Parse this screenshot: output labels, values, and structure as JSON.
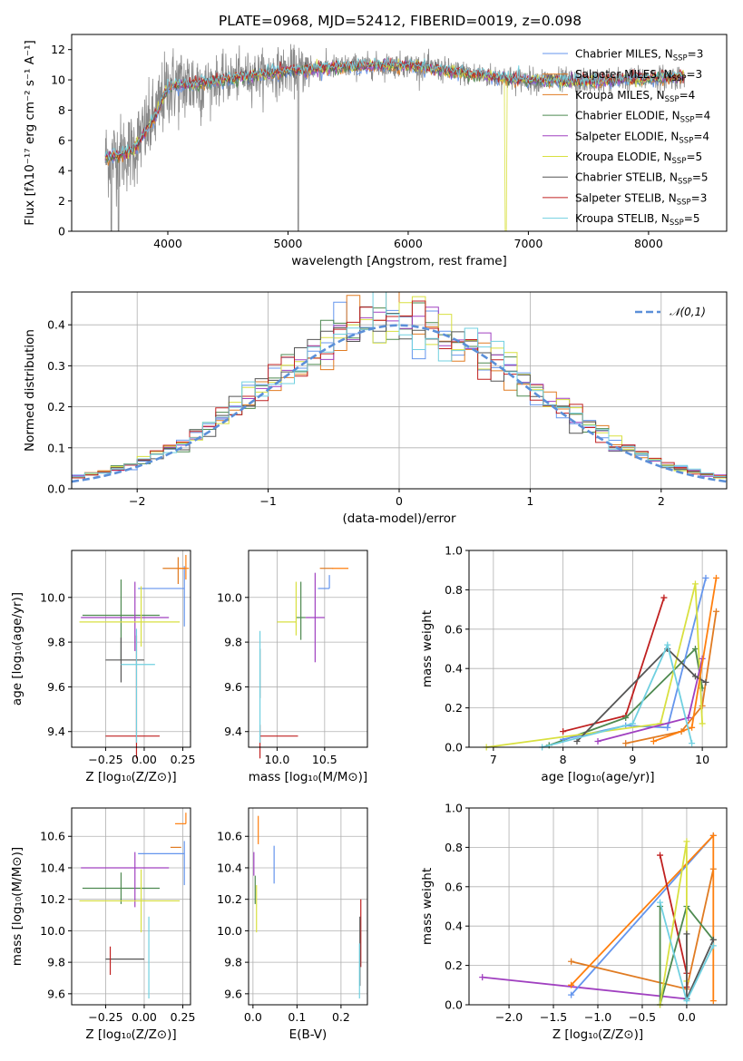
{
  "colors": {
    "series": [
      "#6495ed",
      "#ff7f0e",
      "#e07b22",
      "#4e8a50",
      "#a040c0",
      "#d8e040",
      "#555555",
      "#c02020",
      "#70d0e0"
    ],
    "top_colors": [
      "#6495ed",
      "#e07b22",
      "#4e8a50",
      "#a040c0",
      "#d8e040",
      "#555555",
      "#c02020",
      "#70d0e0"
    ],
    "spectrum": "#888888",
    "normal_curve": "#5b8fd8",
    "grid": "#b0b0b0"
  },
  "chart_data": [
    {
      "id": "spectrum",
      "type": "line",
      "title": "PLATE=0968, MJD=52412, FIBERID=0019, z=0.098",
      "xlabel": "wavelength [Angstrom, rest frame]",
      "ylabel": "Flux [fλ10⁻¹⁷ erg cm⁻² s⁻¹ A⁻¹]",
      "xlim": [
        3200,
        8650
      ],
      "ylim": [
        0,
        13
      ],
      "xticks": [
        "4000",
        "5000",
        "6000",
        "7000",
        "8000"
      ],
      "yticks": [
        "0",
        "2",
        "4",
        "6",
        "8",
        "10",
        "12"
      ],
      "grid": false,
      "legend_position": "right",
      "legend": [
        {
          "text": "Chabrier MILES, N",
          "sub": "SSP",
          "tail": "=3"
        },
        {
          "text": "Salpeter MILES, N",
          "sub": "SSP",
          "tail": "=3"
        },
        {
          "text": "Kroupa MILES, N",
          "sub": "SSP",
          "tail": "=4"
        },
        {
          "text": "Chabrier ELODIE, N",
          "sub": "SSP",
          "tail": "=4"
        },
        {
          "text": "Salpeter ELODIE, N",
          "sub": "SSP",
          "tail": "=4"
        },
        {
          "text": "Kroupa ELODIE, N",
          "sub": "SSP",
          "tail": "=5"
        },
        {
          "text": "Chabrier STELIB, N",
          "sub": "SSP",
          "tail": "=5"
        },
        {
          "text": "Salpeter STELIB, N",
          "sub": "SSP",
          "tail": "=3"
        },
        {
          "text": "Kroupa STELIB, N",
          "sub": "SSP",
          "tail": "=5"
        }
      ],
      "continuum": {
        "x": [
          3500,
          3700,
          3900,
          4000,
          4300,
          4600,
          5000,
          5500,
          6000,
          6500,
          7000,
          7500,
          8000,
          8300
        ],
        "y": [
          4.9,
          5.3,
          7.6,
          9.6,
          9.8,
          10.2,
          10.6,
          10.9,
          11.0,
          10.4,
          10.0,
          9.9,
          10.1,
          10.2
        ]
      }
    },
    {
      "id": "residuals",
      "type": "histogram",
      "xlabel": "(data-model)/error",
      "ylabel": "Normed distribution",
      "xlim": [
        -2.5,
        2.5
      ],
      "ylim": [
        0,
        0.48
      ],
      "xticks": [
        "−2",
        "−1",
        "0",
        "1",
        "2"
      ],
      "xtick_values": [
        -2,
        -1,
        0,
        1,
        2
      ],
      "yticks": [
        "0.0",
        "0.1",
        "0.2",
        "0.3",
        "0.4"
      ],
      "ytick_values": [
        0,
        0.1,
        0.2,
        0.3,
        0.4
      ],
      "grid": true,
      "legend_position": "upper right",
      "legend": "𝒩(0,1)",
      "bin_width": 0.1
    },
    {
      "id": "age-vs-Z",
      "type": "errorbar",
      "xlabel": "Z [log₁₀(Z/Z⊙)]",
      "ylabel": "age  [log₁₀(age/yr)]",
      "xlim": [
        -0.47,
        0.3
      ],
      "ylim": [
        9.33,
        10.21
      ],
      "xticks": [
        "−0.25",
        "0.00",
        "0.25"
      ],
      "xtick_values": [
        -0.25,
        0,
        0.25
      ],
      "yticks": [
        "9.4",
        "9.6",
        "9.8",
        "10.0"
      ],
      "ytick_values": [
        9.4,
        9.6,
        9.8,
        10.0
      ],
      "grid": true,
      "points": [
        {
          "series": 0,
          "x": 0.26,
          "y": 10.04,
          "xerr": [
            0.3,
            0
          ],
          "yerr": [
            0.17,
            0.1
          ]
        },
        {
          "series": 2,
          "x": 0.22,
          "y": 10.13,
          "xerr": [
            0.1,
            0.05
          ],
          "yerr": [
            0.07,
            0.05
          ]
        },
        {
          "series": 3,
          "x": -0.15,
          "y": 9.92,
          "xerr": [
            0.25,
            0.25
          ],
          "yerr": [
            0.2,
            0.16
          ]
        },
        {
          "series": 4,
          "x": -0.06,
          "y": 9.91,
          "xerr": [
            0.35,
            0.22
          ],
          "yerr": [
            0.15,
            0.16
          ]
        },
        {
          "series": 5,
          "x": -0.02,
          "y": 9.89,
          "xerr": [
            0.4,
            0.25
          ],
          "yerr": [
            0.11,
            0.16
          ]
        },
        {
          "series": 6,
          "x": -0.15,
          "y": 9.72,
          "xerr": [
            0.1,
            0.15
          ],
          "yerr": [
            0.1,
            0.1
          ]
        },
        {
          "series": 7,
          "x": -0.05,
          "y": 9.38,
          "xerr": [
            0.2,
            0.15
          ],
          "yerr": [
            0.1,
            0.45
          ]
        },
        {
          "series": 8,
          "x": -0.05,
          "y": 9.7,
          "xerr": [
            0.1,
            0.12
          ],
          "yerr": [
            0.35,
            0.16
          ]
        },
        {
          "series": 1,
          "x": 0.27,
          "y": 10.13,
          "xerr": [
            0.05,
            0.02
          ],
          "yerr": [
            0.05,
            0.06
          ]
        }
      ]
    },
    {
      "id": "age-vs-mass",
      "type": "errorbar",
      "xlabel": "mass [log₁₀(M/M⊙)]",
      "ylabel": "",
      "xlim": [
        9.7,
        10.95
      ],
      "ylim": [
        9.33,
        10.21
      ],
      "xticks": [
        "10.0",
        "10.5"
      ],
      "xtick_values": [
        10.0,
        10.5
      ],
      "yticks": [
        "9.4",
        "9.6",
        "9.8",
        "10.0"
      ],
      "ytick_values": [
        9.4,
        9.6,
        9.8,
        10.0
      ],
      "grid": true,
      "points": [
        {
          "series": 0,
          "x": 10.55,
          "y": 10.04,
          "xerr": [
            0.12,
            0.0
          ],
          "yerr": [
            0.0,
            0.06
          ]
        },
        {
          "series": 2,
          "x": 10.55,
          "y": 10.13,
          "xerr": [
            0.1,
            0.04
          ],
          "yerr": [
            0.0,
            0.0
          ]
        },
        {
          "series": 3,
          "x": 10.25,
          "y": 9.91,
          "xerr": [
            0.05,
            0.05
          ],
          "yerr": [
            0.1,
            0.16
          ]
        },
        {
          "series": 4,
          "x": 10.4,
          "y": 9.91,
          "xerr": [
            0.1,
            0.1
          ],
          "yerr": [
            0.2,
            0.2
          ]
        },
        {
          "series": 5,
          "x": 10.2,
          "y": 9.89,
          "xerr": [
            0.2,
            0.0
          ],
          "yerr": [
            0.06,
            0.18
          ]
        },
        {
          "series": 6,
          "x": 9.82,
          "y": 9.72,
          "xerr": [
            0.0,
            0.0
          ],
          "yerr": [
            0.17,
            0.05
          ]
        },
        {
          "series": 7,
          "x": 9.82,
          "y": 9.38,
          "xerr": [
            0.0,
            0.4
          ],
          "yerr": [
            0.1,
            0.05
          ]
        },
        {
          "series": 8,
          "x": 9.82,
          "y": 9.7,
          "xerr": [
            0.0,
            0.0
          ],
          "yerr": [
            0.35,
            0.15
          ]
        },
        {
          "series": 1,
          "x": 10.68,
          "y": 10.13,
          "xerr": [
            0.1,
            0.07
          ],
          "yerr": [
            0.0,
            0.0
          ]
        }
      ]
    },
    {
      "id": "mass-weight-vs-age",
      "type": "line",
      "xlabel": "age  [log₁₀(age/yr)]",
      "ylabel": "mass weight",
      "xlim": [
        6.65,
        10.35
      ],
      "ylim": [
        0,
        1
      ],
      "xticks": [
        "7",
        "8",
        "9",
        "10"
      ],
      "xtick_values": [
        7,
        8,
        9,
        10
      ],
      "yticks": [
        "0.0",
        "0.2",
        "0.4",
        "0.6",
        "0.8",
        "1.0"
      ],
      "ytick_values": [
        0,
        0.2,
        0.4,
        0.6,
        0.8,
        1.0
      ],
      "grid": true
    },
    {
      "id": "mass-vs-Z",
      "type": "errorbar",
      "xlabel": "Z [log₁₀(Z/Z⊙)]",
      "ylabel": "mass [log₁₀(M/M⊙)]",
      "xlim": [
        -0.47,
        0.3
      ],
      "ylim": [
        9.53,
        10.78
      ],
      "xticks": [
        "−0.25",
        "0.00",
        "0.25"
      ],
      "xtick_values": [
        -0.25,
        0,
        0.25
      ],
      "yticks": [
        "9.6",
        "9.8",
        "10.0",
        "10.2",
        "10.4",
        "10.6"
      ],
      "ytick_values": [
        9.6,
        9.8,
        10.0,
        10.2,
        10.4,
        10.6
      ],
      "grid": true
    },
    {
      "id": "mass-vs-EBV",
      "type": "errorbar",
      "xlabel": "E(B-V)",
      "ylabel": "",
      "xlim": [
        -0.01,
        0.26
      ],
      "ylim": [
        9.53,
        10.78
      ],
      "xticks": [
        "0.0",
        "0.1",
        "0.2"
      ],
      "xtick_values": [
        0.0,
        0.1,
        0.2
      ],
      "yticks": [
        "9.6",
        "9.8",
        "10.0",
        "10.2",
        "10.4",
        "10.6"
      ],
      "ytick_values": [
        9.6,
        9.8,
        10.0,
        10.2,
        10.4,
        10.6
      ],
      "grid": true
    },
    {
      "id": "mass-weight-vs-Z",
      "type": "line",
      "xlabel": "Z [log₁₀(Z/Z⊙)]",
      "ylabel": "mass weight",
      "xlim": [
        -2.45,
        0.45
      ],
      "ylim": [
        0,
        1
      ],
      "xticks": [
        "−2.0",
        "−1.5",
        "−1.0",
        "−0.5",
        "0.0"
      ],
      "xtick_values": [
        -2.0,
        -1.5,
        -1.0,
        -0.5,
        0.0
      ],
      "yticks": [
        "0.0",
        "0.2",
        "0.4",
        "0.6",
        "0.8",
        "1.0"
      ],
      "ytick_values": [
        0,
        0.2,
        0.4,
        0.6,
        0.8,
        1.0
      ],
      "grid": true
    }
  ]
}
